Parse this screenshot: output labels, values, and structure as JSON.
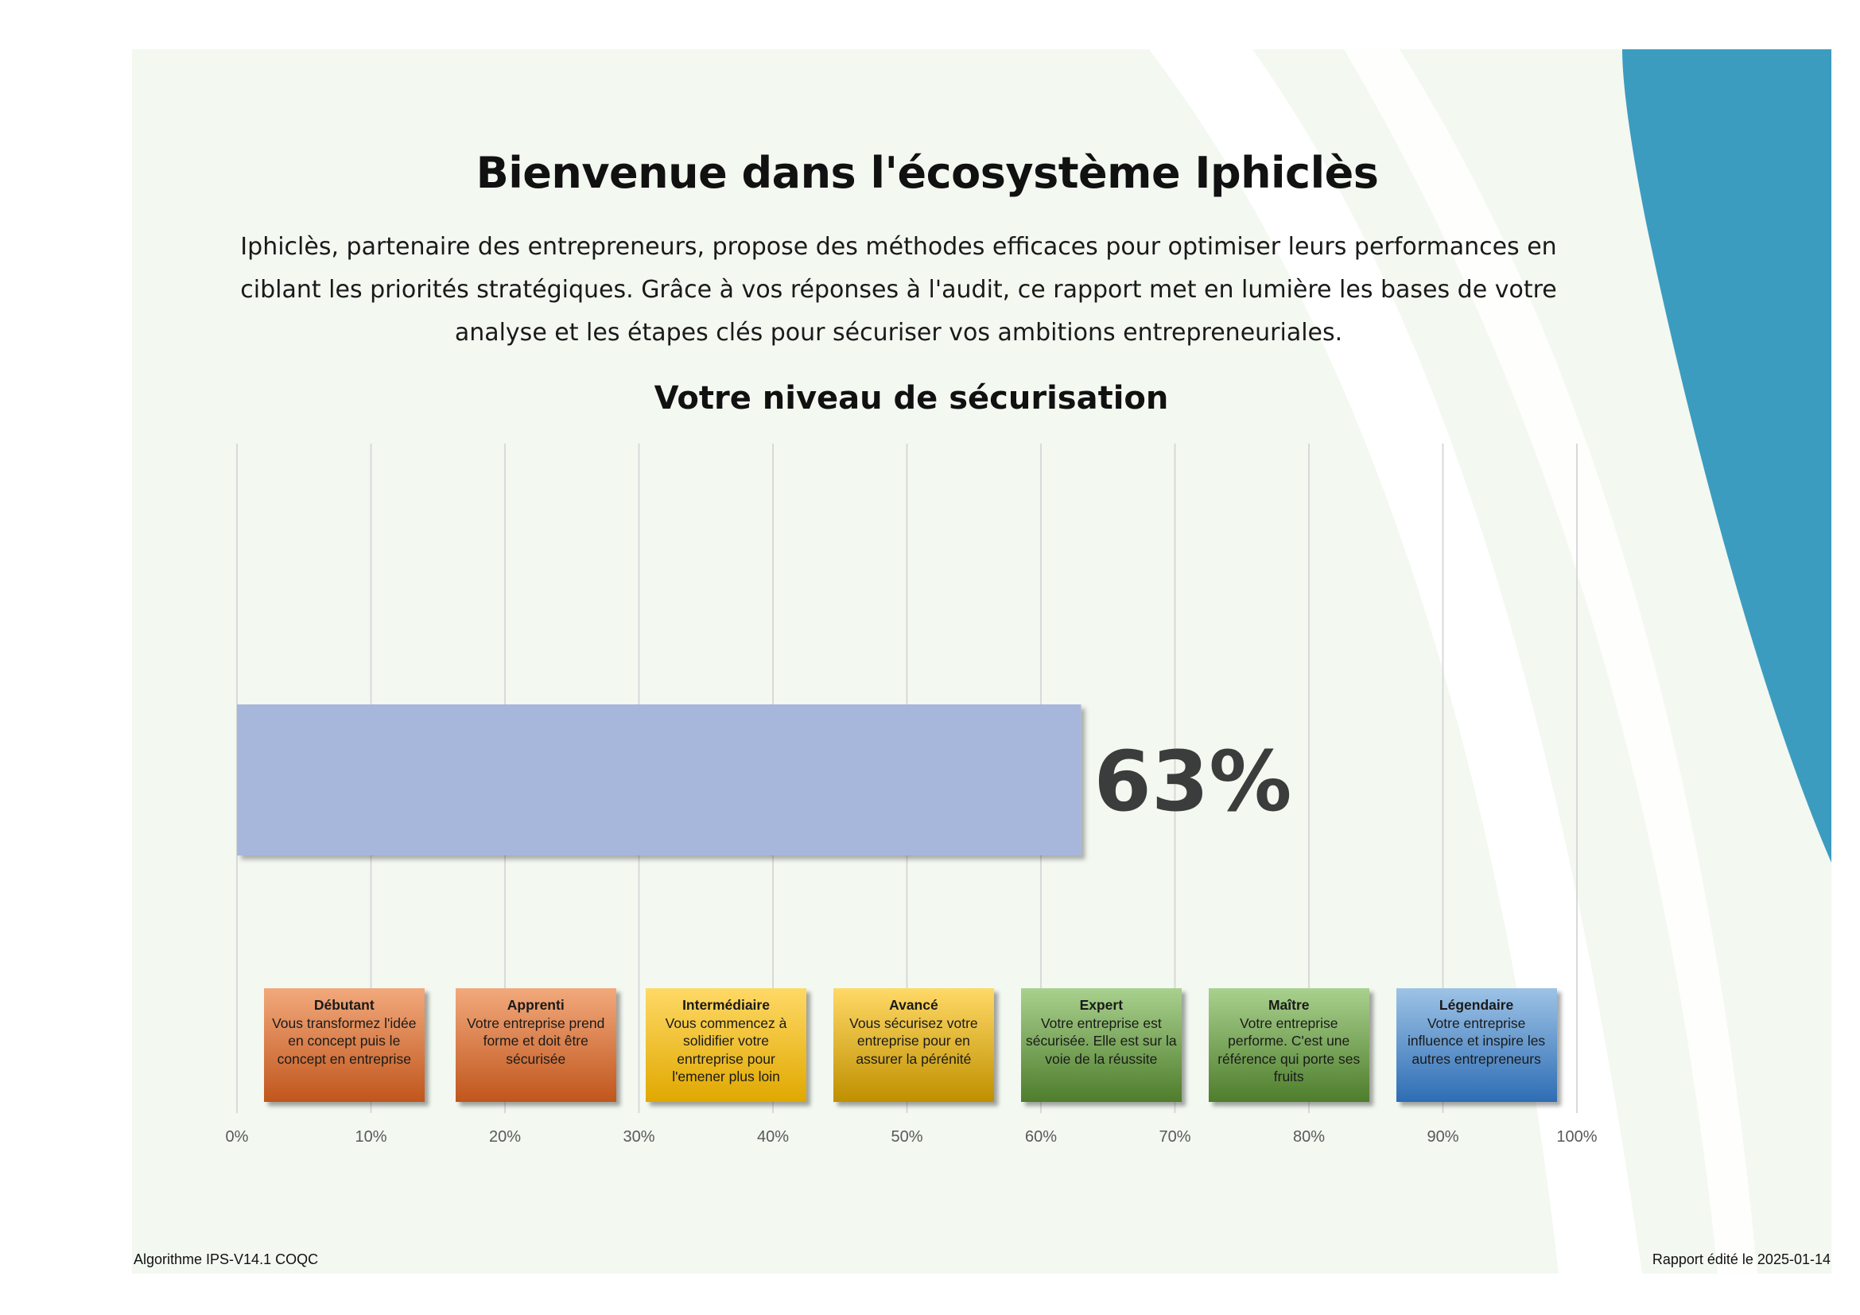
{
  "header": {
    "title": "Bienvenue dans l'écosystème Iphiclès",
    "intro": "Iphiclès, partenaire des entrepreneurs, propose des méthodes efficaces pour optimiser leurs performances en ciblant les priorités stratégiques. Grâce à vos réponses à l'audit, ce rapport met en lumière les bases de votre analyse et les étapes clés pour sécuriser vos ambitions entrepreneuriales."
  },
  "chart_data": {
    "type": "bar",
    "orientation": "horizontal",
    "title": "Votre niveau de sécurisation",
    "xlabel": "",
    "ylabel": "",
    "xlim": [
      0,
      100
    ],
    "x_ticks": [
      "0%",
      "10%",
      "20%",
      "30%",
      "40%",
      "50%",
      "60%",
      "70%",
      "80%",
      "90%",
      "100%"
    ],
    "grid": "vertical",
    "legend": "none",
    "value": 63,
    "value_label": "63%",
    "bar_color": "#a7b6db",
    "levels": [
      {
        "name": "Débutant",
        "text": "Vous transformez l'idée en concept puis le concept en entreprise",
        "from": 2,
        "to": 14,
        "color_top": "#f2a97c",
        "color_bottom": "#c0561c"
      },
      {
        "name": "Apprenti",
        "text": "Votre entreprise prend forme et doit être sécurisée",
        "from": 16.3,
        "to": 28.3,
        "color_top": "#f2a97c",
        "color_bottom": "#c0561c"
      },
      {
        "name": "Intermédiaire",
        "text": "Vous commencez à solidifier votre enrtreprise pour l'emener plus loin",
        "from": 30.5,
        "to": 42.5,
        "color_top": "#ffd966",
        "color_bottom": "#e0a800"
      },
      {
        "name": "Avancé",
        "text": "Vous sécurisez votre entreprise pour en assurer la pérénité",
        "from": 44.5,
        "to": 56.5,
        "color_top": "#ffd966",
        "color_bottom": "#bf9000"
      },
      {
        "name": "Expert",
        "text": "Votre entreprise est sécurisée. Elle est sur la voie de la réussite",
        "from": 58.5,
        "to": 70.5,
        "color_top": "#a9d18e",
        "color_bottom": "#4e7d2c"
      },
      {
        "name": "Maître",
        "text": "Votre entreprise performe. C'est une référence qui porte ses fruits",
        "from": 72.5,
        "to": 84.5,
        "color_top": "#a9d18e",
        "color_bottom": "#4e7d2c"
      },
      {
        "name": "Légendaire",
        "text": "Votre entreprise influence et inspire les autres entrepreneurs",
        "from": 86.5,
        "to": 98.5,
        "color_top": "#9dc3e6",
        "color_bottom": "#2e6db4"
      }
    ]
  },
  "footer": {
    "left": "Algorithme IPS-V14.1 COQC",
    "right": "Rapport édité le 2025-01-14"
  },
  "colors": {
    "panel": "#f3f8f1",
    "accent": "#3c9cc0",
    "text_dark": "#3a3d3c"
  }
}
